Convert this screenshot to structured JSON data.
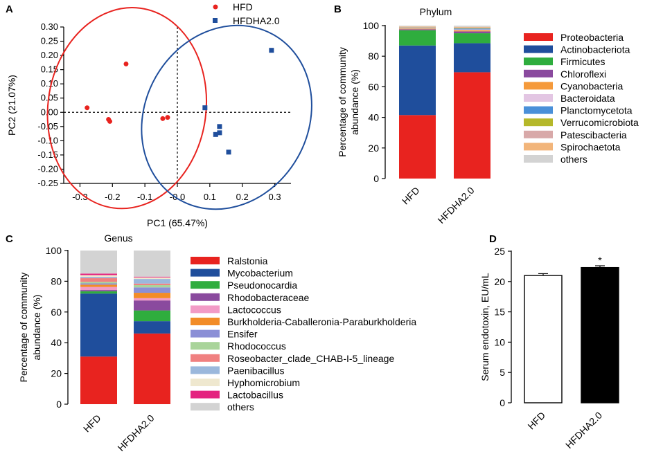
{
  "colors": {
    "hfd": "#e8231f",
    "hfdha": "#1f4e9c",
    "bar_d_hfd": "#ffffff",
    "bar_d_hfdha": "#000000"
  },
  "chart_data": [
    {
      "panel": "A",
      "type": "scatter",
      "title": "",
      "xlabel": "PC1 (65.47%)",
      "ylabel": "PC2  (21.07%)",
      "xlim": [
        -0.35,
        0.35
      ],
      "ylim": [
        -0.25,
        0.3
      ],
      "xticks": [
        -0.3,
        -0.2,
        -0.1,
        0.0,
        0.1,
        0.2,
        0.3
      ],
      "xtick_labels": [
        "-0.3",
        "-0.2",
        "-0.1",
        "-0.0",
        "0.1",
        "0.2",
        "0.3"
      ],
      "yticks": [
        0.3,
        0.25,
        0.2,
        0.15,
        0.1,
        0.05,
        0.0,
        -0.05,
        -0.1,
        -0.15,
        -0.2,
        -0.25
      ],
      "ytick_labels": [
        "0.30",
        "0.25",
        "0.20",
        "0.15",
        "0.10",
        "0.05",
        "0.00",
        "-0.05",
        "-0.10",
        "-0.15",
        "-0.20",
        "-0.25"
      ],
      "legend": [
        "HFD",
        "HFDHA2.0"
      ],
      "series": [
        {
          "name": "HFD",
          "marker": "circle",
          "points": [
            [
              -0.158,
              0.17
            ],
            [
              -0.278,
              0.016
            ],
            [
              -0.212,
              -0.025
            ],
            [
              -0.208,
              -0.032
            ],
            [
              -0.045,
              -0.022
            ],
            [
              -0.03,
              -0.018
            ]
          ]
        },
        {
          "name": "HFDHA2.0",
          "marker": "square",
          "points": [
            [
              0.29,
              0.218
            ],
            [
              0.085,
              0.016
            ],
            [
              0.13,
              -0.05
            ],
            [
              0.13,
              -0.072
            ],
            [
              0.118,
              -0.078
            ],
            [
              0.158,
              -0.14
            ]
          ]
        }
      ]
    },
    {
      "panel": "B",
      "type": "bar",
      "stacked": true,
      "title": "Phylum",
      "ylabel": "Percentage of  community abundance (%)",
      "ylabel_lines": [
        "Percentage of  community",
        "abundance (%)"
      ],
      "ylim": [
        0,
        100
      ],
      "yticks": [
        0,
        20,
        40,
        60,
        80,
        100
      ],
      "categories": [
        "HFD",
        "HFDHA2.0"
      ],
      "series": [
        {
          "name": "Proteobacteria",
          "color": "#e8231f",
          "values": [
            41.5,
            69.5
          ]
        },
        {
          "name": "Actinobacteriota",
          "color": "#1f4e9c",
          "values": [
            45.5,
            19.0
          ]
        },
        {
          "name": "Firmicutes",
          "color": "#2fad3e",
          "values": [
            10.0,
            6.5
          ]
        },
        {
          "name": "Chloroflexi",
          "color": "#8a4a9e",
          "values": [
            0.6,
            1.2
          ]
        },
        {
          "name": "Cyanobacteria",
          "color": "#f59a3b",
          "values": [
            0.5,
            0.8
          ]
        },
        {
          "name": "Bacteroidata",
          "color": "#e3c6e3",
          "values": [
            0.3,
            0.5
          ]
        },
        {
          "name": "Planctomycetota",
          "color": "#4a90d9",
          "values": [
            0.2,
            0.6
          ]
        },
        {
          "name": "Verrucomicrobiota",
          "color": "#b5b82a",
          "values": [
            0.2,
            0.3
          ]
        },
        {
          "name": "Patescibacteria",
          "color": "#d8a9a9",
          "values": [
            0.3,
            0.4
          ]
        },
        {
          "name": "Spirochaetota",
          "color": "#f2b57a",
          "values": [
            0.3,
            0.4
          ]
        },
        {
          "name": "others",
          "color": "#d3d3d3",
          "values": [
            0.6,
            0.8
          ]
        }
      ]
    },
    {
      "panel": "C",
      "type": "bar",
      "stacked": true,
      "title": "Genus",
      "ylabel": "Percentage of  community abundance (%)",
      "ylabel_lines": [
        "Percentage of  community",
        "abundance (%)"
      ],
      "ylim": [
        0,
        100
      ],
      "yticks": [
        0,
        20,
        40,
        60,
        80,
        100
      ],
      "categories": [
        "HFD",
        "HFDHA2.0"
      ],
      "series": [
        {
          "name": "Ralstonia",
          "color": "#e8231f",
          "values": [
            31.0,
            46.0
          ]
        },
        {
          "name": "Mycobacterium",
          "color": "#1f4e9c",
          "values": [
            41.0,
            8.0
          ]
        },
        {
          "name": "Pseudonocardia",
          "color": "#2fad3e",
          "values": [
            1.5,
            7.0
          ]
        },
        {
          "name": "Rhodobacteraceae",
          "color": "#8a4a9e",
          "values": [
            0.8,
            6.5
          ]
        },
        {
          "name": "Lactococcus",
          "color": "#f29bc6",
          "values": [
            2.0,
            1.5
          ]
        },
        {
          "name": "Burkholderia-Caballeronia-Paraburkholderia",
          "color": "#f28c28",
          "values": [
            1.5,
            3.5
          ]
        },
        {
          "name": "Ensifer",
          "color": "#8b8fd6",
          "values": [
            0.8,
            3.5
          ]
        },
        {
          "name": "Rhodococcus",
          "color": "#a9d49a",
          "values": [
            1.0,
            1.5
          ]
        },
        {
          "name": "Roseobacter_clade_CHAB-I-5_lineage",
          "color": "#f08080",
          "values": [
            2.5,
            1.0
          ]
        },
        {
          "name": "Paenibacillus",
          "color": "#9bb8dc",
          "values": [
            0.8,
            3.0
          ]
        },
        {
          "name": "Hyphomicrobium",
          "color": "#efe8cf",
          "values": [
            1.1,
            1.0
          ]
        },
        {
          "name": "Lactobacillus",
          "color": "#e4237f",
          "values": [
            1.0,
            0.5
          ]
        },
        {
          "name": "others",
          "color": "#d3d3d3",
          "values": [
            15.0,
            17.0
          ]
        }
      ]
    },
    {
      "panel": "D",
      "type": "bar",
      "title": "",
      "ylabel": "Serum endotoxin, EU/mL",
      "ylim": [
        0,
        25
      ],
      "yticks": [
        0,
        5,
        10,
        15,
        20,
        25
      ],
      "categories": [
        "HFD",
        "HFDHA2.0"
      ],
      "values": [
        21.0,
        22.3
      ],
      "errors": [
        0.3,
        0.3
      ],
      "annotations": [
        "",
        "*"
      ]
    }
  ]
}
